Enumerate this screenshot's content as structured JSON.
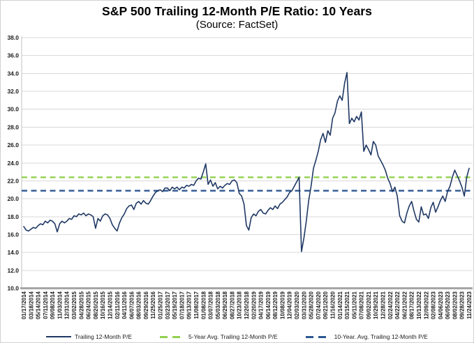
{
  "title": "S&P 500 Trailing 12-Month P/E Ratio: 10 Years",
  "subtitle": "(Source: FactSet)",
  "colors": {
    "series_navy": "#1f3864",
    "avg5_green": "#92d050",
    "avg10_blue": "#2c5791",
    "gridline": "#d9d9d9",
    "axis": "#a6a6a6"
  },
  "legend": [
    {
      "label": "Trailing 12-Month P/E",
      "color": "#1f3864",
      "style": "solid"
    },
    {
      "label": "5-Year Avg. Trailing 12-Month P/E",
      "color": "#92d050",
      "style": "dashed"
    },
    {
      "label": "10-Year. Avg. Trailing 12-Month P/E",
      "color": "#2c5791",
      "style": "dashed"
    }
  ],
  "chart_data": {
    "type": "line",
    "title": "S&P 500 Trailing 12-Month P/E Ratio: 10 Years",
    "subtitle": "(Source: FactSet)",
    "ylim": [
      10.0,
      38.0
    ],
    "ytick_step": 2.0,
    "grid": true,
    "legend_position": "bottom",
    "x_labels": [
      "01/17/2014",
      "03/18/2014",
      "05/14/2014",
      "07/11/2014",
      "09/08/2014",
      "11/03/2014",
      "12/31/2014",
      "03/02/2015",
      "04/28/2015",
      "06/24/2015",
      "08/20/2015",
      "10/16/2015",
      "12/14/2015",
      "02/11/2016",
      "04/11/2016",
      "06/07/2016",
      "08/03/2016",
      "09/29/2016",
      "11/25/2016",
      "01/25/2017",
      "03/23/2017",
      "05/19/2017",
      "07/18/2017",
      "09/13/2017",
      "11/08/2017",
      "01/08/2018",
      "03/07/2018",
      "05/03/2018",
      "06/29/2018",
      "08/27/2018",
      "10/23/2018",
      "12/20/2018",
      "02/20/2019",
      "04/17/2019",
      "06/14/2019",
      "08/12/2019",
      "10/08/2019",
      "12/04/2019",
      "02/03/2020",
      "03/31/2020",
      "05/28/2020",
      "07/24/2020",
      "09/21/2020",
      "11/16/2020",
      "01/14/2021",
      "03/15/2021",
      "05/11/2021",
      "07/08/2021",
      "09/02/2021",
      "10/29/2021",
      "12/28/2021",
      "02/24/2022",
      "04/22/2022",
      "06/21/2022",
      "08/17/2022",
      "10/13/2022",
      "12/09/2022",
      "02/08/2023",
      "04/06/2023",
      "06/05/2023",
      "08/02/2023",
      "09/28/2023",
      "11/24/2023"
    ],
    "series": [
      {
        "name": "Trailing 12-Month P/E",
        "color": "#1f3864",
        "style": "solid",
        "values": [
          16.9,
          16.5,
          16.4,
          16.6,
          16.8,
          16.7,
          17.0,
          17.2,
          17.1,
          17.5,
          17.3,
          17.6,
          17.5,
          17.2,
          16.3,
          17.2,
          17.5,
          17.3,
          17.5,
          17.8,
          17.7,
          18.1,
          18.0,
          18.3,
          18.2,
          18.4,
          18.1,
          18.3,
          18.2,
          18.0,
          16.7,
          17.8,
          17.5,
          18.1,
          18.3,
          18.2,
          17.8,
          17.1,
          16.7,
          16.4,
          17.3,
          17.9,
          18.3,
          18.9,
          19.2,
          19.3,
          18.8,
          19.5,
          19.7,
          19.4,
          19.8,
          19.5,
          19.4,
          19.8,
          20.3,
          20.7,
          20.9,
          21.0,
          20.8,
          21.2,
          21.2,
          20.9,
          21.3,
          21.1,
          21.3,
          21.0,
          21.3,
          21.2,
          21.5,
          21.4,
          21.6,
          21.5,
          22.0,
          22.3,
          22.2,
          23.0,
          23.9,
          21.6,
          22.1,
          21.4,
          21.8,
          21.1,
          21.4,
          21.2,
          21.5,
          21.7,
          21.6,
          22.0,
          22.1,
          21.8,
          20.6,
          20.3,
          19.4,
          17.0,
          16.5,
          17.9,
          18.3,
          18.1,
          18.6,
          18.8,
          18.4,
          18.3,
          18.7,
          19.0,
          18.8,
          19.2,
          18.9,
          19.4,
          19.6,
          19.9,
          20.2,
          20.7,
          20.9,
          21.4,
          21.9,
          22.4,
          14.1,
          15.6,
          17.5,
          19.8,
          21.4,
          23.4,
          24.3,
          25.3,
          26.6,
          27.3,
          26.3,
          27.6,
          27.1,
          29.0,
          29.6,
          30.9,
          31.5,
          31.0,
          32.9,
          34.1,
          28.4,
          29.0,
          28.6,
          29.2,
          28.8,
          29.7,
          25.3,
          26.0,
          25.5,
          24.9,
          26.4,
          26.0,
          24.8,
          24.3,
          23.8,
          23.2,
          22.3,
          21.7,
          20.8,
          21.3,
          20.3,
          18.1,
          17.5,
          17.3,
          18.4,
          19.2,
          19.7,
          18.6,
          17.7,
          17.4,
          19.1,
          18.2,
          18.3,
          17.8,
          19.0,
          19.6,
          18.5,
          19.1,
          19.8,
          20.3,
          19.7,
          20.8,
          21.4,
          22.4,
          23.2,
          22.6,
          22.0,
          21.3,
          20.3,
          22.4,
          23.4
        ]
      },
      {
        "name": "5-Year Avg. Trailing 12-Month P/E",
        "color": "#92d050",
        "style": "dashed",
        "value": 22.4
      },
      {
        "name": "10-Year. Avg. Trailing 12-Month P/E",
        "color": "#2c5791",
        "style": "dashed",
        "value": 20.9
      }
    ]
  }
}
